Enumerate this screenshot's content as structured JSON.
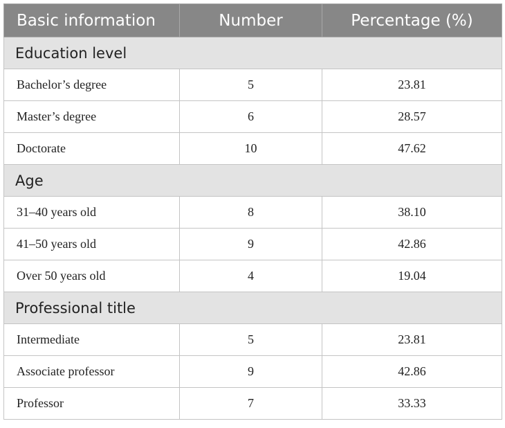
{
  "table": {
    "headers": [
      "Basic information",
      "Number",
      "Percentage (%)"
    ],
    "sections": [
      {
        "title": "Education level",
        "rows": [
          [
            "Bachelor’s degree",
            "5",
            "23.81"
          ],
          [
            "Master’s degree",
            "6",
            "28.57"
          ],
          [
            "Doctorate",
            "10",
            "47.62"
          ]
        ]
      },
      {
        "title": "Age",
        "rows": [
          [
            "31–40 years old",
            "8",
            "38.10"
          ],
          [
            "41–50 years old",
            "9",
            "42.86"
          ],
          [
            "Over 50 years old",
            "4",
            "19.04"
          ]
        ]
      },
      {
        "title": "Professional title",
        "rows": [
          [
            "Intermediate",
            "5",
            "23.81"
          ],
          [
            "Associate professor",
            "9",
            "42.86"
          ],
          [
            "Professor",
            "7",
            "33.33"
          ]
        ]
      }
    ]
  }
}
